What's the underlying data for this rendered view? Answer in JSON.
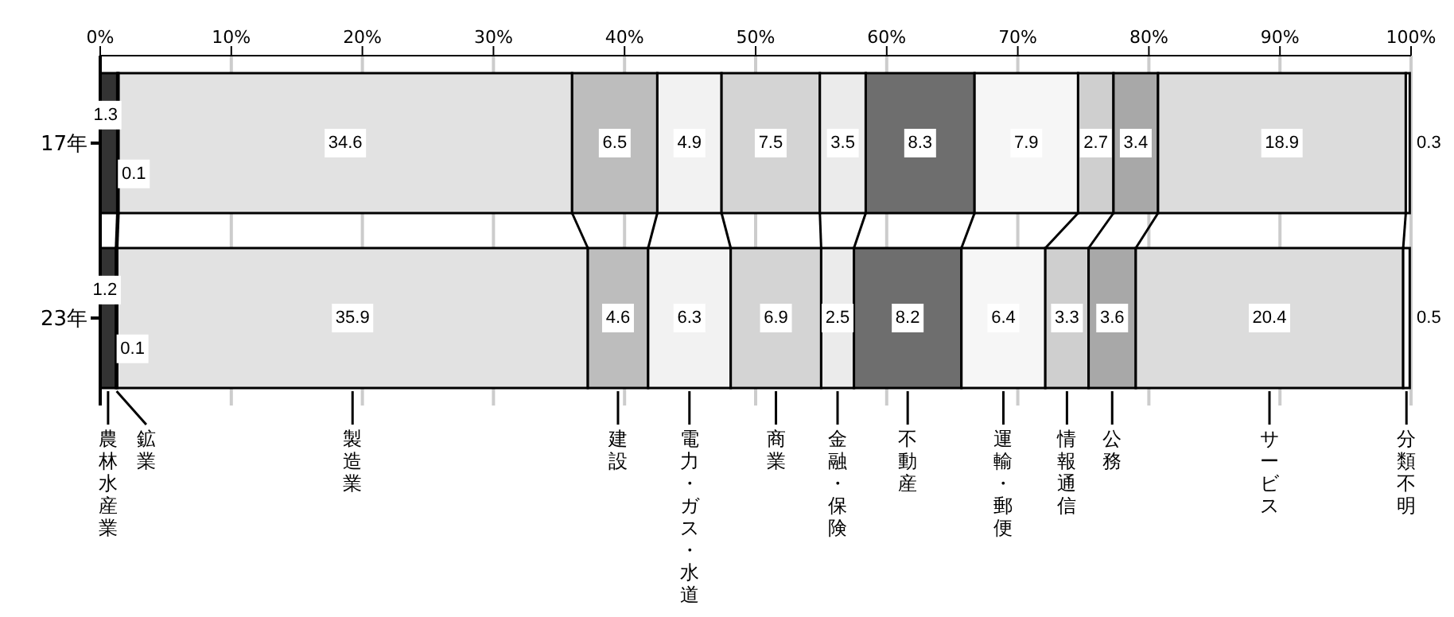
{
  "chart_data": {
    "type": "bar",
    "orientation": "horizontal",
    "stacked": true,
    "categories": [
      "17年",
      "23年"
    ],
    "series": [
      {
        "name": "農林水産業",
        "color": "#333333",
        "values": [
          1.3,
          1.2
        ]
      },
      {
        "name": "鉱業",
        "color": "#000000",
        "values": [
          0.1,
          0.1
        ]
      },
      {
        "name": "製造業",
        "color": "#e2e2e2",
        "values": [
          34.6,
          35.9
        ]
      },
      {
        "name": "建設",
        "color": "#bdbdbd",
        "values": [
          6.5,
          4.6
        ]
      },
      {
        "name": "電力・ガス・水道",
        "color": "#f2f2f2",
        "values": [
          4.9,
          6.3
        ]
      },
      {
        "name": "商業",
        "color": "#d4d4d4",
        "values": [
          7.5,
          6.9
        ]
      },
      {
        "name": "金融・保険",
        "color": "#ebebeb",
        "values": [
          3.5,
          2.5
        ]
      },
      {
        "name": "不動産",
        "color": "#6e6e6e",
        "values": [
          8.3,
          8.2
        ]
      },
      {
        "name": "運輸・郵便",
        "color": "#f6f6f6",
        "values": [
          7.9,
          6.4
        ]
      },
      {
        "name": "情報通信",
        "color": "#cfcfcf",
        "values": [
          2.7,
          3.3
        ]
      },
      {
        "name": "公務",
        "color": "#a8a8a8",
        "values": [
          3.4,
          3.6
        ]
      },
      {
        "name": "サービス",
        "color": "#dcdcdc",
        "values": [
          18.9,
          20.4
        ]
      },
      {
        "name": "分類不明",
        "color": "#ffffff",
        "values": [
          0.3,
          0.5
        ]
      }
    ],
    "xlim": [
      0,
      100
    ],
    "xticks": [
      {
        "value": 0,
        "label": "0%"
      },
      {
        "value": 10,
        "label": "10%"
      },
      {
        "value": 20,
        "label": "20%"
      },
      {
        "value": 30,
        "label": "30%"
      },
      {
        "value": 40,
        "label": "40%"
      },
      {
        "value": 50,
        "label": "50%"
      },
      {
        "value": 60,
        "label": "60%"
      },
      {
        "value": 70,
        "label": "70%"
      },
      {
        "value": 80,
        "label": "80%"
      },
      {
        "value": 90,
        "label": "90%"
      },
      {
        "value": 100,
        "label": "100%"
      }
    ],
    "grid": "x",
    "legend": "bottom",
    "data_labels": true
  }
}
